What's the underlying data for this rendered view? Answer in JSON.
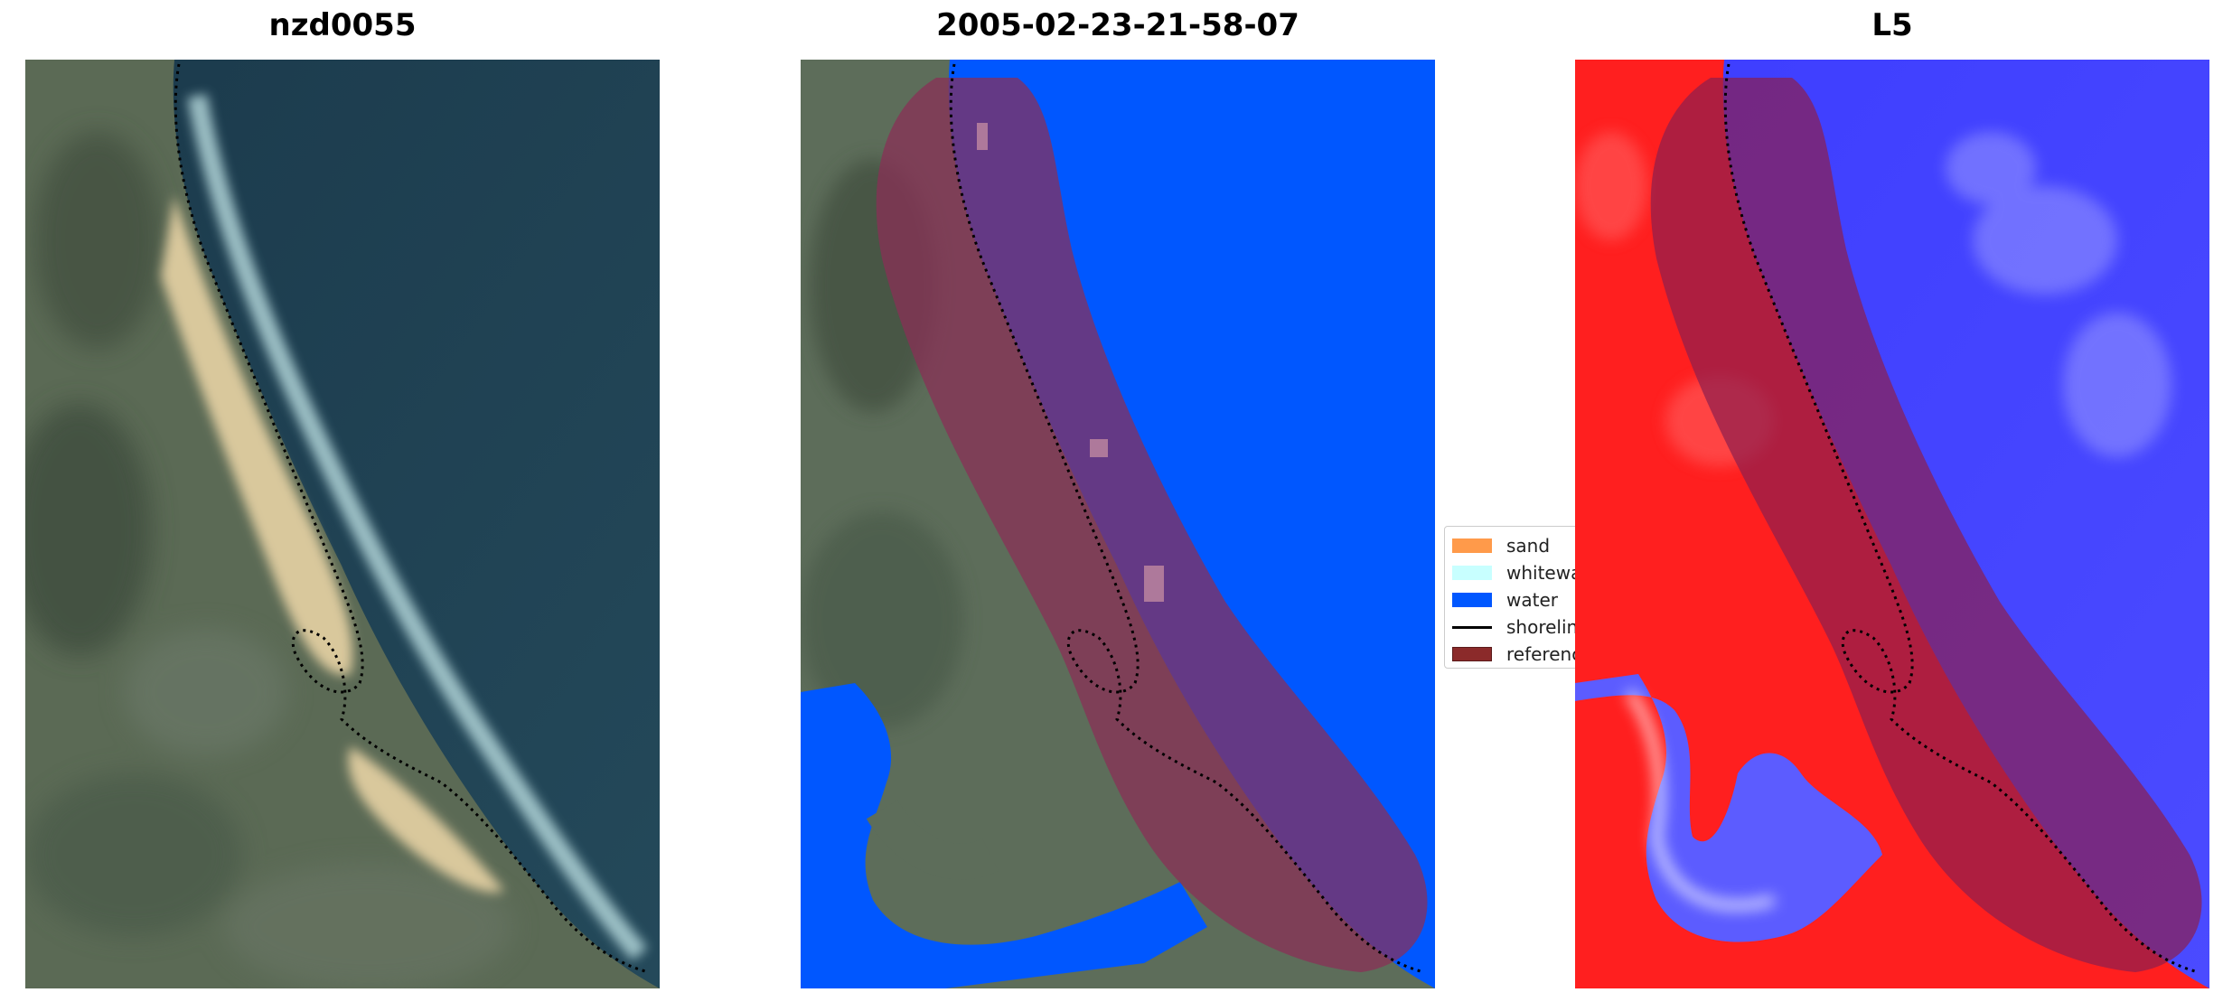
{
  "panels": [
    {
      "title": "nzd0055",
      "content": "satellite-image"
    },
    {
      "title": "2005-02-23-21-58-07",
      "content": "classification"
    },
    {
      "title": "L5",
      "content": "probability-map"
    }
  ],
  "legend": {
    "items": [
      {
        "label": "sand",
        "color": "#ff9a4a",
        "kind": "patch"
      },
      {
        "label": "whitewater",
        "color": "#c8ffff",
        "kind": "patch"
      },
      {
        "label": "water",
        "color": "#0057ff",
        "kind": "patch"
      },
      {
        "label": "shoreline",
        "color": "#000000",
        "kind": "line"
      },
      {
        "label": "reference",
        "color": "#8b2a2a",
        "kind": "patch"
      }
    ]
  },
  "colors": {
    "water_dark": "#1d3b4d",
    "land": "#5f6f58",
    "sand": "#d8c79a",
    "class_water": "#0057ff",
    "buffer": "#8b1e4e",
    "land_prob": "#ff1a1a",
    "water_prob": "#2f2fff"
  }
}
